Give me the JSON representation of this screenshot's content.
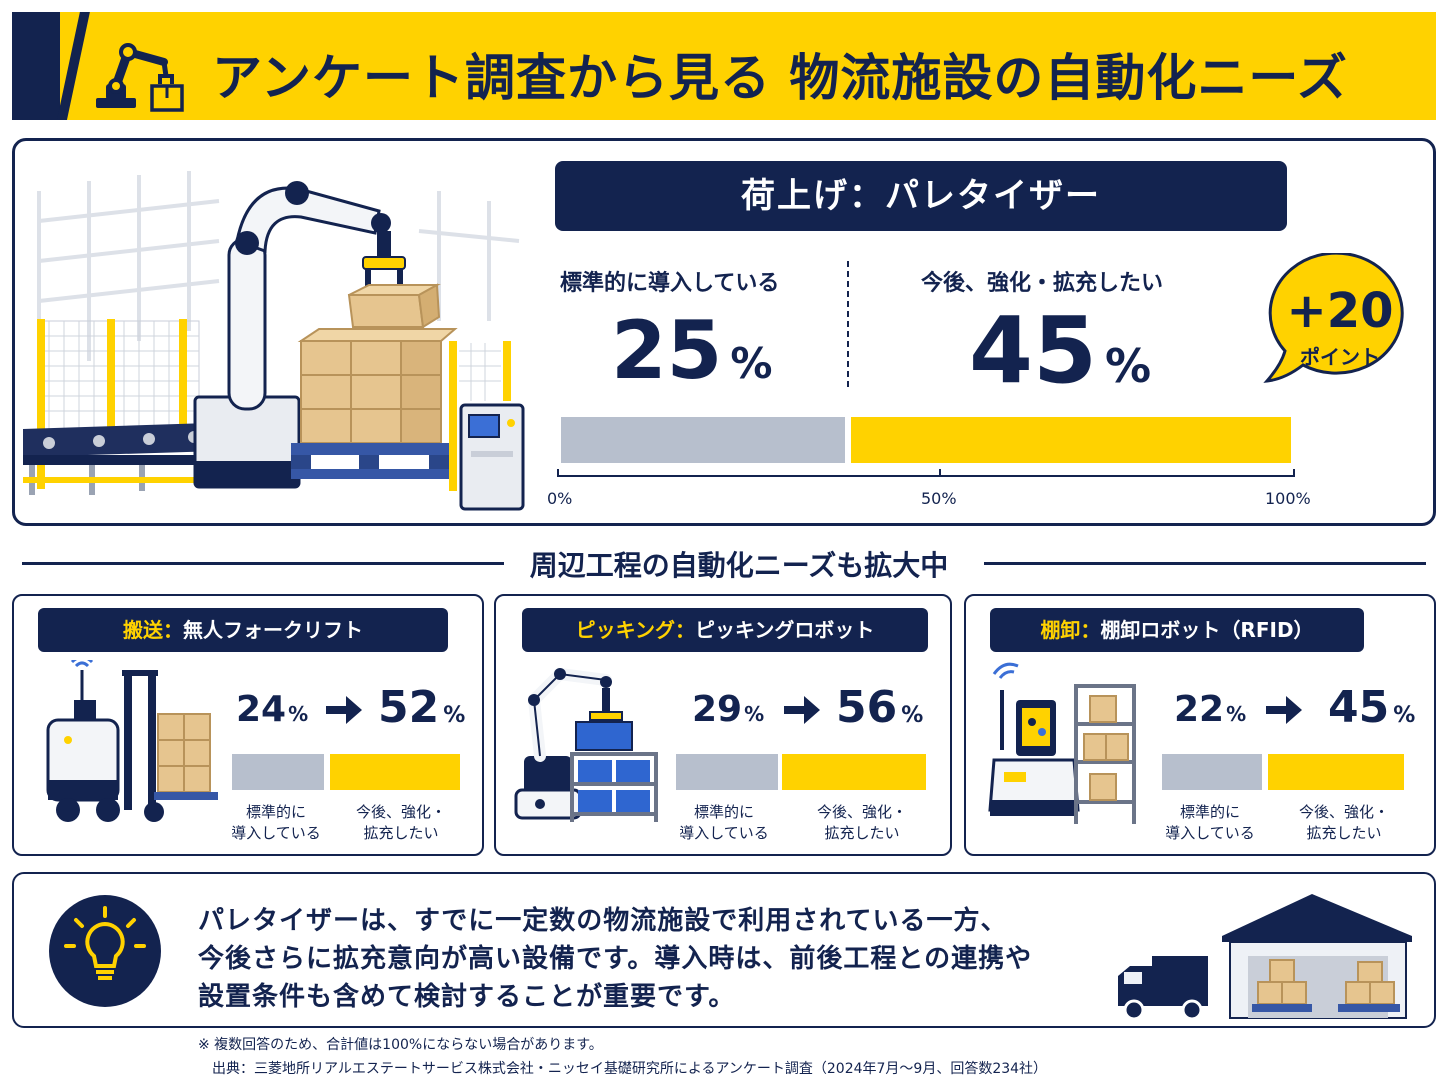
{
  "header": {
    "title": "アンケート調査から見る 物流施設の自動化ニーズ"
  },
  "main": {
    "title": "荷上げ：パレタイザー",
    "current": {
      "label": "標準的に導入している",
      "value": "25",
      "unit": "%",
      "fraction": 0.25
    },
    "future": {
      "label": "今後、強化・拡充したい",
      "value": "45",
      "unit": "%",
      "fraction": 0.45
    },
    "axis_ticks": [
      "0%",
      "50%",
      "100%"
    ],
    "badge": {
      "value": "+20",
      "label": "ポイント"
    }
  },
  "section": {
    "title": "周辺工程の自動化ニーズも拡大中"
  },
  "cards": [
    {
      "category": "搬送：",
      "equipment": "無人フォークリフト",
      "from": "24",
      "to": "52",
      "unit": "%",
      "current_label_1": "標準的に",
      "current_label_2": "導入している",
      "future_label_1": "今後、強化・",
      "future_label_2": "拡充したい",
      "icon": "forklift-icon"
    },
    {
      "category": "ピッキング：",
      "equipment": "ピッキングロボット",
      "from": "29",
      "to": "56",
      "unit": "%",
      "current_label_1": "標準的に",
      "current_label_2": "導入している",
      "future_label_1": "今後、強化・",
      "future_label_2": "拡充したい",
      "icon": "picking-robot-icon"
    },
    {
      "category": "棚卸：",
      "equipment": "棚卸ロボット（RFID）",
      "from": "22",
      "to": "45",
      "unit": "%",
      "current_label_1": "標準的に",
      "current_label_2": "導入している",
      "future_label_1": "今後、強化・",
      "future_label_2": "拡充したい",
      "icon": "inventory-robot-icon"
    }
  ],
  "note": {
    "lines": [
      "パレタイザーは、すでに一定数の物流施設で利用されている一方、",
      "今後さらに拡充意向が高い設備です。導入時は、前後工程との連携や",
      "設置条件も含めて検討することが重要です。"
    ]
  },
  "footnotes": {
    "note": "※ 複数回答のため、合計値は100%にならない場合があります。",
    "source": "出典：三菱地所リアルエステートサービス株式会社・ニッセイ基礎研究所によるアンケート調査（2024年7月〜9月、回答数234社）"
  },
  "colors": {
    "navy": "#13234f",
    "yellow": "#ffd200",
    "gray": "#b7bfcd"
  }
}
